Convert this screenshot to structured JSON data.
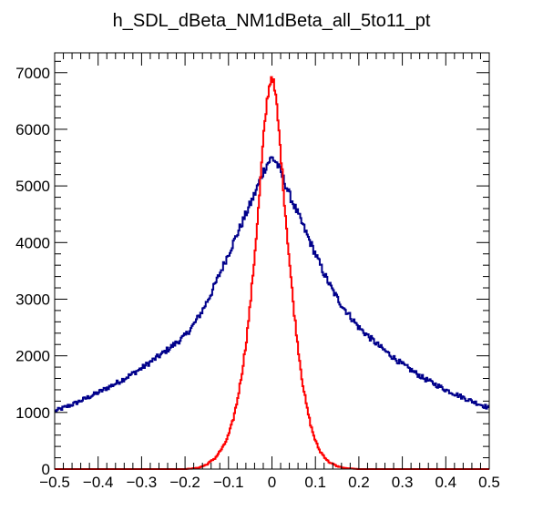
{
  "chart_data": {
    "type": "line",
    "title": "h_SDL_dBeta_NM1dBeta_all_5to11_pt",
    "xlabel": "",
    "ylabel": "",
    "xlim": [
      -0.5,
      0.5
    ],
    "ylim": [
      0,
      7350
    ],
    "grid": false,
    "x_ticks": [
      -0.5,
      -0.4,
      -0.3,
      -0.2,
      -0.1,
      0,
      0.1,
      0.2,
      0.3,
      0.4,
      0.5
    ],
    "x_tick_labels": [
      "−0.5",
      "−0.4",
      "−0.3",
      "−0.2",
      "−0.1",
      "0",
      "0.1",
      "0.2",
      "0.3",
      "0.4",
      "0.5"
    ],
    "y_ticks": [
      0,
      1000,
      2000,
      3000,
      4000,
      5000,
      6000,
      7000
    ],
    "y_tick_labels": [
      "0",
      "1000",
      "2000",
      "3000",
      "4000",
      "5000",
      "6000",
      "7000"
    ],
    "series": [
      {
        "color": "#00008b",
        "x": [
          -0.5,
          -0.45,
          -0.4,
          -0.35,
          -0.3,
          -0.25,
          -0.2,
          -0.18,
          -0.16,
          -0.14,
          -0.12,
          -0.1,
          -0.08,
          -0.06,
          -0.04,
          -0.03,
          -0.02,
          -0.01,
          0,
          0.01,
          0.02,
          0.03,
          0.04,
          0.06,
          0.08,
          0.1,
          0.12,
          0.14,
          0.16,
          0.18,
          0.2,
          0.25,
          0.3,
          0.35,
          0.4,
          0.45,
          0.5
        ],
        "y": [
          1020,
          1170,
          1350,
          1550,
          1780,
          2050,
          2350,
          2550,
          2800,
          3100,
          3450,
          3800,
          4150,
          4500,
          4850,
          5050,
          5250,
          5400,
          5500,
          5420,
          5250,
          5050,
          4850,
          4500,
          4150,
          3800,
          3450,
          3150,
          2900,
          2700,
          2500,
          2150,
          1850,
          1600,
          1400,
          1230,
          1080
        ]
      },
      {
        "color": "#ff0000",
        "x": [
          -0.5,
          -0.2,
          -0.17,
          -0.15,
          -0.13,
          -0.11,
          -0.1,
          -0.09,
          -0.08,
          -0.07,
          -0.06,
          -0.05,
          -0.04,
          -0.03,
          -0.02,
          -0.01,
          0,
          0.01,
          0.02,
          0.03,
          0.04,
          0.05,
          0.06,
          0.07,
          0.08,
          0.09,
          0.1,
          0.11,
          0.13,
          0.15,
          0.17,
          0.2,
          0.5
        ],
        "y": [
          0,
          0,
          20,
          80,
          200,
          420,
          600,
          850,
          1200,
          1650,
          2200,
          2900,
          3750,
          4700,
          5800,
          6600,
          6980,
          6500,
          5600,
          4600,
          3700,
          2850,
          2150,
          1550,
          1100,
          750,
          500,
          320,
          130,
          50,
          15,
          0,
          0
        ]
      }
    ]
  }
}
